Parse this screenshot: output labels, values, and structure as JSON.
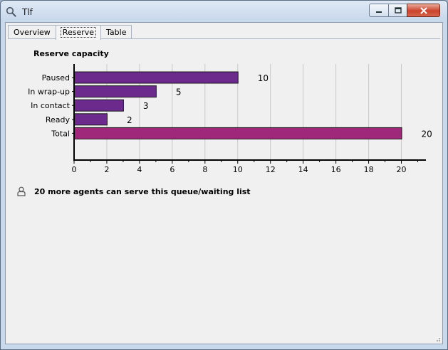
{
  "window": {
    "title": "Tlf"
  },
  "tabs": [
    {
      "label": "Overview"
    },
    {
      "label": "Reserve"
    },
    {
      "label": "Table"
    }
  ],
  "info": {
    "text": "20 more agents can serve this queue/waiting list"
  },
  "chart_data": {
    "type": "bar",
    "orientation": "horizontal",
    "title": "Reserve capacity",
    "categories": [
      "Paused",
      "In wrap-up",
      "In contact",
      "Ready",
      "Total"
    ],
    "values": [
      10,
      5,
      3,
      2,
      20
    ],
    "colors": [
      "#6b2a8c",
      "#6b2a8c",
      "#6b2a8c",
      "#6b2a8c",
      "#a0287a"
    ],
    "xlim": [
      0,
      21.5
    ],
    "xticks": [
      0,
      2,
      4,
      6,
      8,
      10,
      12,
      14,
      16,
      18,
      20
    ],
    "xlabel": "",
    "ylabel": "",
    "grid": true,
    "legend": "none"
  }
}
